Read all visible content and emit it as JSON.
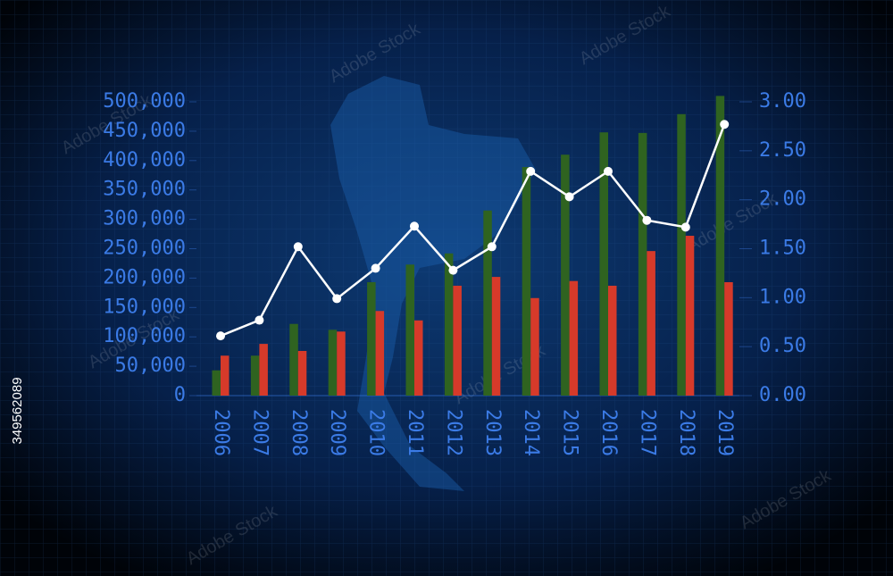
{
  "chart_data": {
    "type": "bar_line",
    "categories": [
      "2006",
      "2007",
      "2008",
      "2009",
      "2010",
      "2011",
      "2012",
      "2013",
      "2014",
      "2015",
      "2016",
      "2017",
      "2018",
      "2019"
    ],
    "series": [
      {
        "type": "bar",
        "color": "#2f6320",
        "values": [
          43000,
          68000,
          122000,
          112000,
          193000,
          223000,
          242000,
          315000,
          389000,
          410000,
          448000,
          447000,
          479000,
          510000
        ]
      },
      {
        "type": "bar",
        "color": "#d63a2a",
        "values": [
          68000,
          88000,
          76000,
          109000,
          144000,
          128000,
          187000,
          202000,
          166000,
          195000,
          187000,
          246000,
          272000,
          193000
        ]
      },
      {
        "type": "line",
        "axis": "y2",
        "color": "#ffffff",
        "values": [
          0.61,
          0.77,
          1.52,
          0.99,
          1.3,
          1.73,
          1.28,
          1.52,
          2.29,
          2.03,
          2.29,
          1.79,
          1.72,
          2.77
        ]
      }
    ],
    "ylim": [
      0,
      500000
    ],
    "yticks": [
      0,
      {
        "value": 50000,
        "label": "50,000"
      },
      {
        "value": 100000,
        "label": "100,000"
      },
      {
        "value": 150000,
        "label": "150,000"
      },
      {
        "value": 200000,
        "label": "200,000"
      },
      {
        "value": 250000,
        "label": "250,000"
      },
      {
        "value": 300000,
        "label": "300,000"
      },
      {
        "value": 350000,
        "label": "350,000"
      },
      {
        "value": 400000,
        "label": "400,000"
      },
      {
        "value": 450000,
        "label": "450,000"
      },
      {
        "value": 500000,
        "label": "500,000"
      }
    ],
    "y2lim": [
      0,
      3
    ],
    "y2ticks": [
      {
        "value": 0,
        "label": "0.00"
      },
      {
        "value": 0.5,
        "label": "0.50"
      },
      {
        "value": 1,
        "label": "1.00"
      },
      {
        "value": 1.5,
        "label": "1.50"
      },
      {
        "value": 2,
        "label": "2.00"
      },
      {
        "value": 2.5,
        "label": "2.50"
      },
      {
        "value": 3,
        "label": "3.00"
      }
    ],
    "axis_color": "#3b7be6"
  },
  "watermark": "Adobe Stock",
  "image_id": "349562089"
}
